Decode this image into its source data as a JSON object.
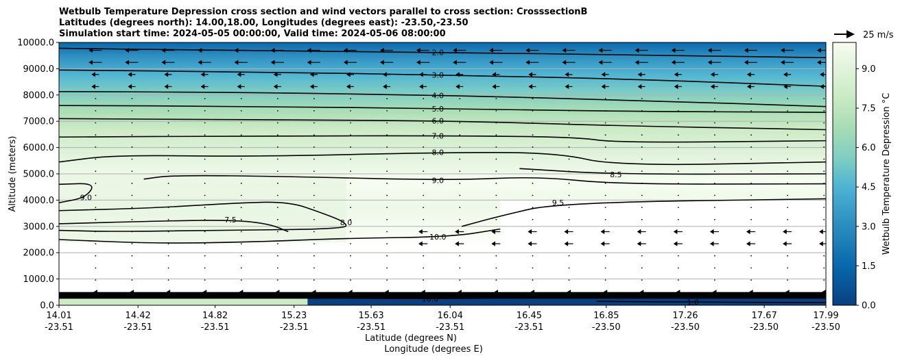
{
  "chart_data": {
    "type": "contour",
    "title_lines": [
      "Wetbulb Temperature Depression cross section and wind vectors parallel to cross section: CrosssectionB",
      "Latitudes (degrees north): 14.00,18.00, Longitudes (degrees east): -23.50,-23.50",
      "Simulation start time: 2024-05-05 00:00:00, Valid time: 2024-05-06 08:00:00"
    ],
    "ylabel": "Altitude (meters)",
    "xlabel_lat": "Latitude (degrees N)",
    "xlabel_lon": "Longitude (degrees E)",
    "ylim": [
      0,
      10000
    ],
    "y_ticks": [
      "0.0",
      "1000.0",
      "2000.0",
      "3000.0",
      "4000.0",
      "5000.0",
      "6000.0",
      "7000.0",
      "8000.0",
      "9000.0",
      "10000.0"
    ],
    "xlim": [
      14.01,
      17.99
    ],
    "x_ticks": [
      {
        "lat": "14.01",
        "lon": "-23.51",
        "v": 14.01
      },
      {
        "lat": "14.42",
        "lon": "-23.51",
        "v": 14.42
      },
      {
        "lat": "14.82",
        "lon": "-23.51",
        "v": 14.82
      },
      {
        "lat": "15.23",
        "lon": "-23.51",
        "v": 15.23
      },
      {
        "lat": "15.63",
        "lon": "-23.51",
        "v": 15.63
      },
      {
        "lat": "16.04",
        "lon": "-23.51",
        "v": 16.04
      },
      {
        "lat": "16.45",
        "lon": "-23.51",
        "v": 16.45
      },
      {
        "lat": "16.85",
        "lon": "-23.50",
        "v": 16.85
      },
      {
        "lat": "17.26",
        "lon": "-23.50",
        "v": 17.26
      },
      {
        "lat": "17.67",
        "lon": "-23.50",
        "v": 17.67
      },
      {
        "lat": "17.99",
        "lon": "-23.50",
        "v": 17.99
      }
    ],
    "grid": "horizontal",
    "colorbar": {
      "label": "Wetbulb Temperature Depression °C",
      "range": [
        0,
        10
      ],
      "ticks": [
        "0.0",
        "1.5",
        "3.0",
        "4.5",
        "6.0",
        "7.5",
        "9.0"
      ],
      "colors": [
        "#084081",
        "#0868ac",
        "#2b8cbe",
        "#4eb3d3",
        "#7bccc4",
        "#a8ddb5",
        "#ccebc5",
        "#e0f3db",
        "#f7fcf0",
        "#ffffff"
      ]
    },
    "quiver_key": "25 m/s",
    "contours": [
      {
        "label": "2.0",
        "level": 2.0,
        "points": [
          [
            14.01,
            9780
          ],
          [
            14.8,
            9700
          ],
          [
            16.04,
            9620
          ],
          [
            17.0,
            9520
          ],
          [
            17.99,
            9420
          ]
        ]
      },
      {
        "label": "3.0",
        "level": 3.0,
        "points": [
          [
            14.01,
            8950
          ],
          [
            15.0,
            8880
          ],
          [
            16.04,
            8760
          ],
          [
            17.0,
            8600
          ],
          [
            17.99,
            8330
          ]
        ]
      },
      {
        "label": "4.0",
        "level": 4.0,
        "points": [
          [
            14.01,
            8130
          ],
          [
            15.0,
            8100
          ],
          [
            16.04,
            7980
          ],
          [
            17.0,
            7800
          ],
          [
            17.99,
            7560
          ]
        ]
      },
      {
        "label": "5.0",
        "level": 5.0,
        "points": [
          [
            14.01,
            7600
          ],
          [
            15.0,
            7570
          ],
          [
            16.04,
            7480
          ],
          [
            16.9,
            7380
          ],
          [
            17.99,
            7340
          ]
        ]
      },
      {
        "label": "6.0",
        "level": 6.0,
        "points": [
          [
            14.01,
            7100
          ],
          [
            15.0,
            7060
          ],
          [
            16.04,
            7020
          ],
          [
            16.9,
            6830
          ],
          [
            17.99,
            6680
          ]
        ]
      },
      {
        "label": "7.0",
        "level": 7.0,
        "points": [
          [
            14.01,
            6400
          ],
          [
            15.0,
            6440
          ],
          [
            16.04,
            6450
          ],
          [
            16.7,
            6400
          ],
          [
            16.9,
            6180
          ],
          [
            17.99,
            6260
          ]
        ]
      },
      {
        "label": "8.0",
        "level": 8.0,
        "points": [
          [
            14.01,
            5450
          ],
          [
            14.3,
            5720
          ],
          [
            15.0,
            5650
          ],
          [
            16.04,
            5820
          ],
          [
            16.6,
            5800
          ],
          [
            16.9,
            5300
          ],
          [
            17.99,
            5450
          ]
        ]
      },
      {
        "label": "8.5",
        "level": 8.5,
        "points": [
          [
            16.4,
            5200
          ],
          [
            16.9,
            4980
          ],
          [
            17.99,
            5000
          ]
        ]
      },
      {
        "label": "9.0",
        "level": 9.0,
        "points": [
          [
            14.45,
            4800
          ],
          [
            14.6,
            4950
          ],
          [
            15.2,
            4900
          ],
          [
            16.04,
            4750
          ],
          [
            16.5,
            4900
          ],
          [
            16.9,
            4600
          ],
          [
            17.99,
            4620
          ]
        ]
      },
      {
        "label": "9.5",
        "level": 9.5,
        "points": [
          [
            16.1,
            3000
          ],
          [
            16.3,
            3400
          ],
          [
            16.6,
            3900
          ],
          [
            17.99,
            4050
          ]
        ]
      },
      {
        "label": "9.0",
        "level": 9.0,
        "points": [
          [
            14.01,
            4600
          ],
          [
            14.2,
            4650
          ],
          [
            14.15,
            4100
          ],
          [
            14.01,
            3900
          ]
        ]
      },
      {
        "label": "8.0",
        "level": 8.0,
        "points": [
          [
            14.01,
            3600
          ],
          [
            14.5,
            3700
          ],
          [
            14.9,
            3880
          ],
          [
            15.2,
            3950
          ],
          [
            15.38,
            3500
          ],
          [
            15.5,
            3150
          ],
          [
            15.5,
            2900
          ],
          [
            14.8,
            2850
          ],
          [
            14.3,
            2800
          ],
          [
            14.01,
            2850
          ]
        ]
      },
      {
        "label": "7.5",
        "level": 7.5,
        "points": [
          [
            14.01,
            3100
          ],
          [
            14.5,
            3200
          ],
          [
            14.9,
            3250
          ],
          [
            15.1,
            3100
          ],
          [
            15.2,
            2800
          ]
        ]
      },
      {
        "label": "10.0",
        "level": 10.0,
        "points": [
          [
            14.01,
            2500
          ],
          [
            14.5,
            2350
          ],
          [
            15.0,
            2400
          ],
          [
            15.5,
            2550
          ],
          [
            16.04,
            2600
          ],
          [
            16.3,
            2900
          ]
        ]
      },
      {
        "label": "10.0",
        "level": 10.0,
        "points": [
          [
            14.5,
            350
          ],
          [
            15.0,
            300
          ],
          [
            15.5,
            260
          ],
          [
            16.0,
            250
          ],
          [
            16.5,
            300
          ],
          [
            17.99,
            330
          ]
        ]
      },
      {
        "label": "1.0",
        "level": 1.0,
        "points": [
          [
            16.8,
            150
          ],
          [
            17.3,
            120
          ],
          [
            17.99,
            100
          ]
        ]
      }
    ],
    "shading": {
      "upper_gradient_levels": [
        [
          10000,
          1.2
        ],
        [
          9500,
          2.2
        ],
        [
          9000,
          3.0
        ],
        [
          8500,
          3.6
        ],
        [
          8000,
          4.2
        ],
        [
          7500,
          5.2
        ],
        [
          7000,
          6.3
        ],
        [
          6500,
          7.1
        ],
        [
          6000,
          7.8
        ],
        [
          5500,
          8.5
        ],
        [
          4800,
          9.3
        ],
        [
          4000,
          9.6
        ],
        [
          3500,
          9.4
        ],
        [
          3000,
          8.6
        ],
        [
          2600,
          9.2
        ],
        [
          2200,
          10.0
        ]
      ],
      "low_band_levels": [
        [
          450,
          1.0
        ],
        [
          200,
          0.5
        ],
        [
          0,
          0.3
        ]
      ]
    }
  }
}
